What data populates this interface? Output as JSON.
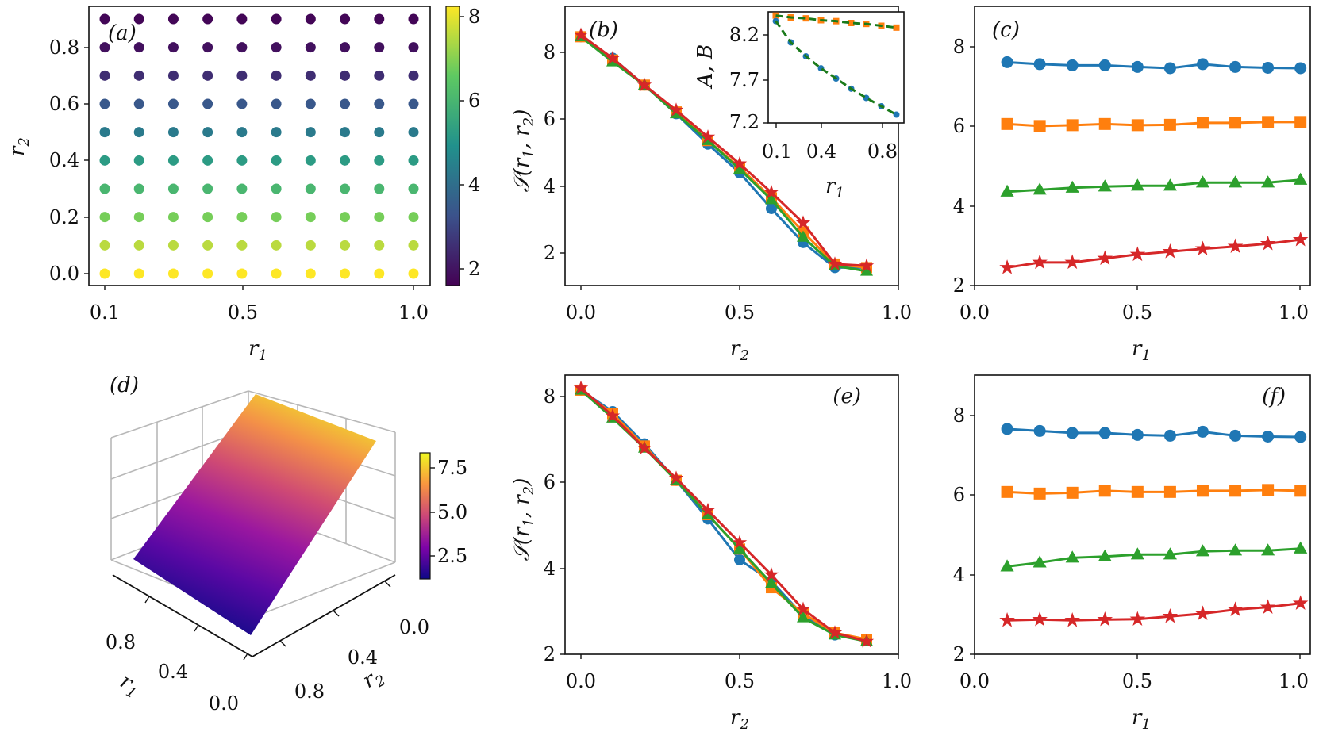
{
  "colors": {
    "blue": "#1f77b4",
    "orange": "#ff7f0e",
    "green": "#2ca02c",
    "red": "#d62728",
    "dash": "#1a7a1a"
  },
  "chart_data": [
    {
      "id": "a",
      "type": "scatter",
      "panel_label": "(a)",
      "xlabel": "r1",
      "ylabel": "r2",
      "x": [
        0.1,
        0.2,
        0.3,
        0.4,
        0.5,
        0.6,
        0.7,
        0.8,
        0.9,
        1.0
      ],
      "y": [
        0.0,
        0.1,
        0.2,
        0.3,
        0.4,
        0.5,
        0.6,
        0.7,
        0.8,
        0.9
      ],
      "color_values_by_row": [
        8.2,
        7.5,
        6.8,
        6.0,
        5.2,
        4.3,
        3.4,
        2.5,
        1.9,
        1.7
      ],
      "xticks": [
        "0.1",
        "0.5",
        "1.0"
      ],
      "yticks": [
        "0.0",
        "0.2",
        "0.4",
        "0.6",
        "0.8"
      ],
      "colorbar": {
        "ticks": [
          "2",
          "4",
          "6",
          "8"
        ],
        "range": [
          1.6,
          8.2
        ],
        "colormap": "viridis"
      }
    },
    {
      "id": "b",
      "type": "line",
      "panel_label": "(b)",
      "xlabel": "r2",
      "ylabel": "S(r1, r2)",
      "xlim": [
        -0.05,
        1.0
      ],
      "ylim": [
        1.2,
        9.0
      ],
      "xticks": [
        "0.0",
        "0.5",
        "1.0"
      ],
      "yticks": [
        "2",
        "4",
        "6",
        "8"
      ],
      "x": [
        0.0,
        0.1,
        0.2,
        0.3,
        0.4,
        0.5,
        0.6,
        0.7,
        0.8,
        0.9
      ],
      "series": [
        {
          "name": "blue",
          "marker": "circle",
          "values": [
            8.15,
            7.55,
            6.8,
            6.0,
            5.15,
            4.35,
            3.35,
            2.4,
            1.7,
            1.7
          ]
        },
        {
          "name": "orange",
          "marker": "square",
          "values": [
            8.15,
            7.5,
            6.8,
            6.05,
            5.25,
            4.5,
            3.65,
            2.7,
            1.8,
            1.7
          ]
        },
        {
          "name": "green",
          "marker": "triangle",
          "values": [
            8.15,
            7.45,
            6.8,
            6.0,
            5.25,
            4.45,
            3.6,
            2.55,
            1.75,
            1.6
          ]
        },
        {
          "name": "red",
          "marker": "star",
          "values": [
            8.2,
            7.55,
            6.8,
            6.1,
            5.35,
            4.6,
            3.8,
            2.95,
            1.8,
            1.75
          ]
        }
      ],
      "inset": {
        "xlabel": "r1",
        "ylabel": "A, B",
        "xlim": [
          0.05,
          0.95
        ],
        "ylim": [
          7.2,
          8.4
        ],
        "xticks": [
          "0.1",
          "0.4",
          "0.8"
        ],
        "yticks": [
          "7.2",
          "7.7",
          "8.2"
        ],
        "x": [
          0.1,
          0.2,
          0.3,
          0.4,
          0.5,
          0.6,
          0.7,
          0.8,
          0.9
        ],
        "series": [
          {
            "name": "A",
            "marker": "square",
            "color": "orange",
            "values": [
              8.36,
              8.34,
              8.33,
              8.31,
              8.3,
              8.28,
              8.27,
              8.25,
              8.23
            ]
          },
          {
            "name": "B",
            "marker": "circle",
            "color": "blue",
            "values": [
              8.3,
              8.07,
              7.92,
              7.79,
              7.68,
              7.57,
              7.47,
              7.38,
              7.29
            ]
          }
        ]
      }
    },
    {
      "id": "c",
      "type": "line",
      "panel_label": "(c)",
      "xlabel": "r1",
      "ylabel": "",
      "xlim": [
        0.0,
        1.03
      ],
      "ylim": [
        2.0,
        9.0
      ],
      "xticks": [
        "0.0",
        "0.5",
        "1.0"
      ],
      "yticks": [
        "2",
        "4",
        "6",
        "8"
      ],
      "x": [
        0.1,
        0.2,
        0.3,
        0.4,
        0.5,
        0.6,
        0.7,
        0.8,
        0.9,
        1.0
      ],
      "series": [
        {
          "name": "blue",
          "marker": "circle",
          "values": [
            7.6,
            7.55,
            7.52,
            7.52,
            7.48,
            7.45,
            7.55,
            7.48,
            7.46,
            7.45
          ]
        },
        {
          "name": "orange",
          "marker": "square",
          "values": [
            6.05,
            6.0,
            6.02,
            6.05,
            6.02,
            6.03,
            6.08,
            6.08,
            6.1,
            6.1
          ]
        },
        {
          "name": "green",
          "marker": "triangle",
          "values": [
            4.35,
            4.4,
            4.45,
            4.48,
            4.5,
            4.5,
            4.58,
            4.58,
            4.58,
            4.65
          ]
        },
        {
          "name": "red",
          "marker": "star",
          "values": [
            2.45,
            2.58,
            2.58,
            2.68,
            2.78,
            2.85,
            2.92,
            2.98,
            3.05,
            3.15
          ]
        }
      ]
    },
    {
      "id": "d",
      "type": "surface3d",
      "panel_label": "(d)",
      "xlabel": "r1",
      "ylabel": "r2",
      "r1_ticks": [
        "0.8",
        "0.4",
        "0.0"
      ],
      "r2_ticks": [
        "0.0",
        "0.4",
        "0.8"
      ],
      "colorbar": {
        "ticks": [
          "7.5",
          "5.0",
          "2.5"
        ],
        "range": [
          1.0,
          8.5
        ],
        "colormap": "plasma"
      }
    },
    {
      "id": "e",
      "type": "line",
      "panel_label": "(e)",
      "xlabel": "r2",
      "ylabel": "S(r1, r2)",
      "xlim": [
        -0.05,
        1.0
      ],
      "ylim": [
        2.0,
        8.5
      ],
      "xticks": [
        "0.0",
        "0.5",
        "1.0"
      ],
      "yticks": [
        "2",
        "4",
        "6",
        "8"
      ],
      "x": [
        0.0,
        0.1,
        0.2,
        0.3,
        0.4,
        0.5,
        0.6,
        0.7,
        0.8,
        0.9
      ],
      "series": [
        {
          "name": "blue",
          "marker": "circle",
          "values": [
            8.15,
            7.65,
            6.9,
            6.05,
            5.15,
            4.2,
            3.7,
            2.9,
            2.45,
            2.35
          ]
        },
        {
          "name": "orange",
          "marker": "square",
          "values": [
            8.15,
            7.6,
            6.85,
            6.05,
            5.25,
            4.45,
            3.55,
            2.95,
            2.5,
            2.35
          ]
        },
        {
          "name": "green",
          "marker": "triangle",
          "values": [
            8.15,
            7.5,
            6.8,
            6.05,
            5.25,
            4.45,
            3.65,
            2.85,
            2.45,
            2.3
          ]
        },
        {
          "name": "red",
          "marker": "star",
          "values": [
            8.2,
            7.55,
            6.8,
            6.1,
            5.35,
            4.6,
            3.85,
            3.05,
            2.5,
            2.3
          ]
        }
      ]
    },
    {
      "id": "f",
      "type": "line",
      "panel_label": "(f)",
      "xlabel": "r1",
      "ylabel": "",
      "xlim": [
        0.0,
        1.03
      ],
      "ylim": [
        2.0,
        9.0
      ],
      "xticks": [
        "0.0",
        "0.5",
        "1.0"
      ],
      "yticks": [
        "2",
        "4",
        "6",
        "8"
      ],
      "x": [
        0.1,
        0.2,
        0.3,
        0.4,
        0.5,
        0.6,
        0.7,
        0.8,
        0.9,
        1.0
      ],
      "series": [
        {
          "name": "blue",
          "marker": "circle",
          "values": [
            7.65,
            7.6,
            7.55,
            7.55,
            7.5,
            7.48,
            7.58,
            7.48,
            7.46,
            7.45
          ]
        },
        {
          "name": "orange",
          "marker": "square",
          "values": [
            6.07,
            6.03,
            6.05,
            6.1,
            6.07,
            6.07,
            6.1,
            6.1,
            6.12,
            6.1
          ]
        },
        {
          "name": "green",
          "marker": "triangle",
          "values": [
            4.2,
            4.3,
            4.42,
            4.45,
            4.5,
            4.5,
            4.58,
            4.6,
            4.6,
            4.65
          ]
        },
        {
          "name": "red",
          "marker": "star",
          "values": [
            2.85,
            2.87,
            2.85,
            2.87,
            2.88,
            2.95,
            3.02,
            3.12,
            3.18,
            3.28
          ]
        }
      ]
    }
  ]
}
